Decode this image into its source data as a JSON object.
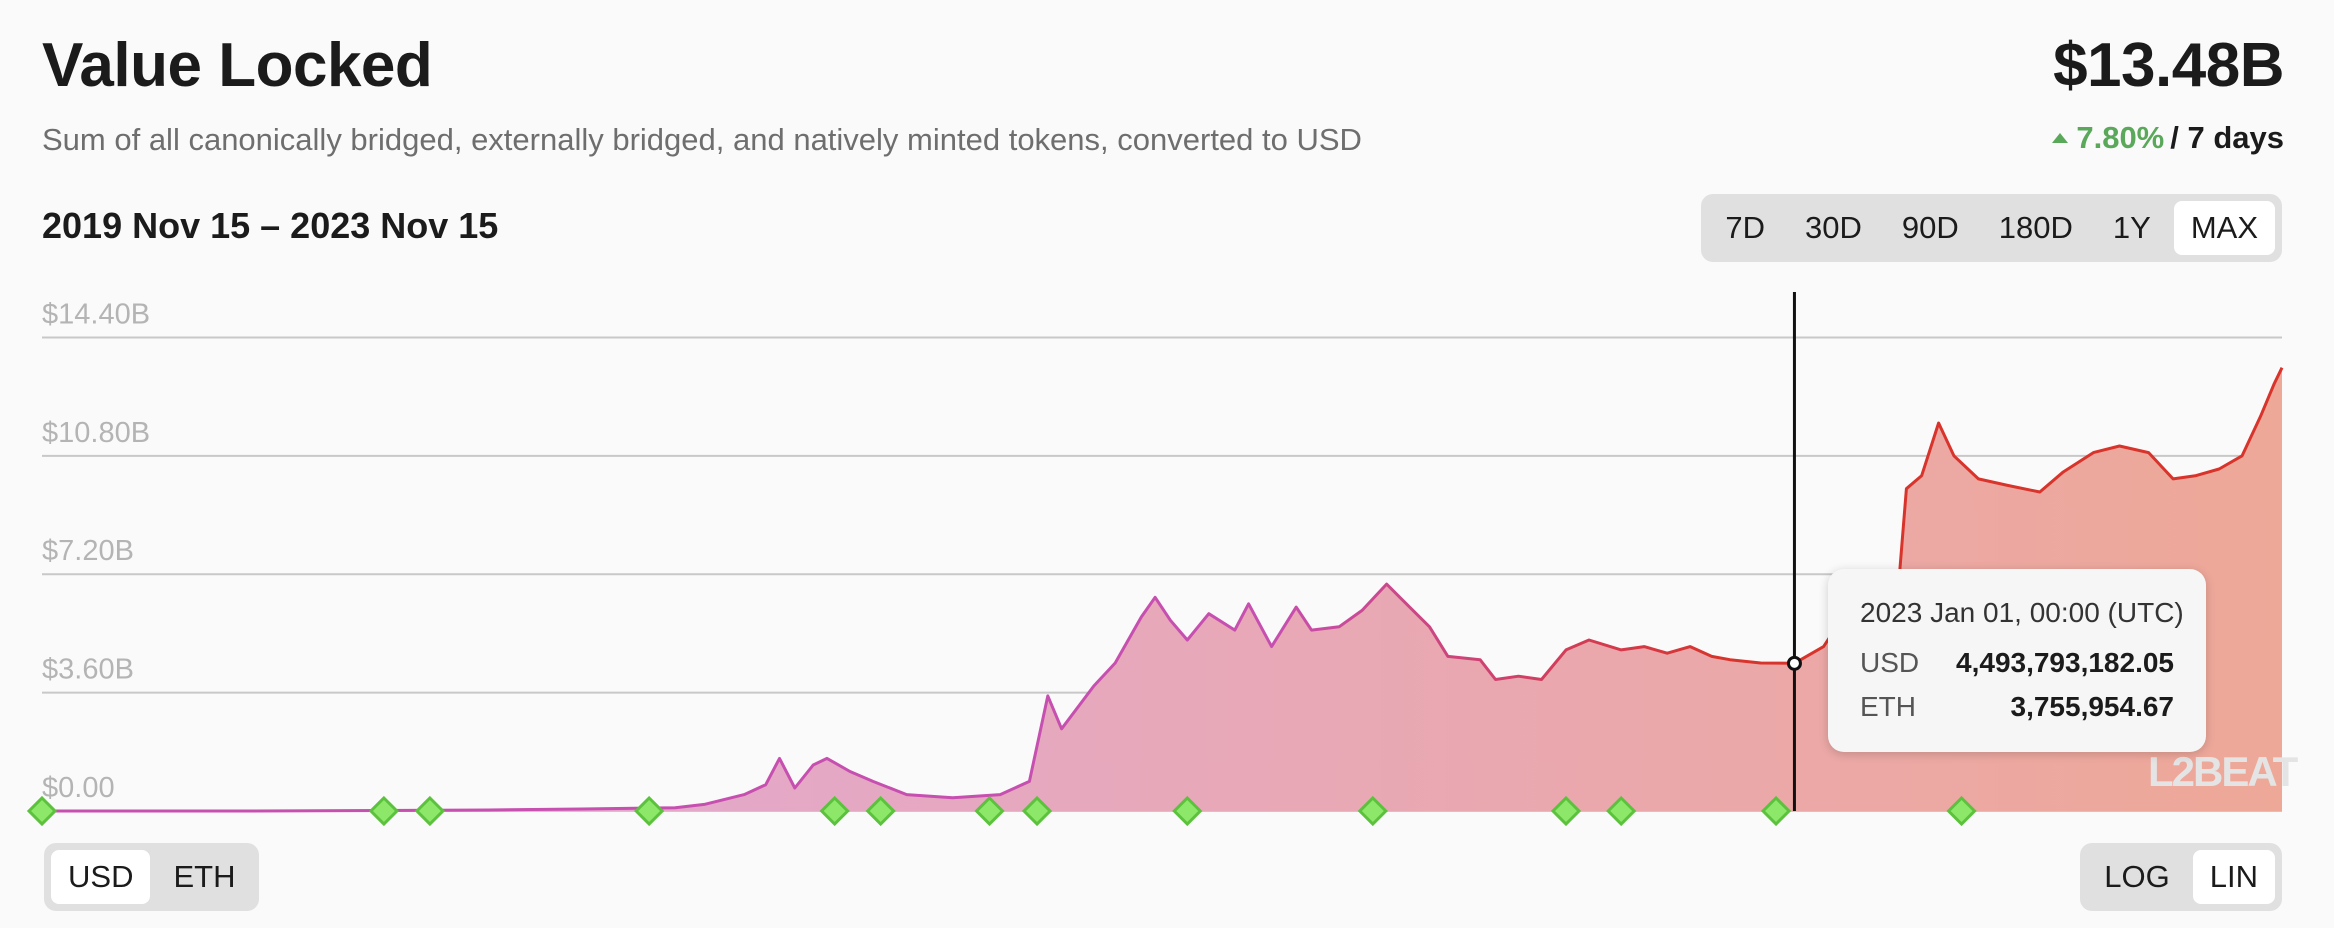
{
  "header": {
    "title": "Value Locked",
    "subtitle": "Sum of all canonically bridged, externally bridged, and natively minted tokens, converted to USD",
    "total_value": "$13.48B",
    "change_percent": "7.80%",
    "change_period": "/ 7 days",
    "change_color": "#5aa85a"
  },
  "date_range": "2019 Nov 15 – 2023 Nov 15",
  "time_range_options": [
    {
      "label": "7D",
      "active": false
    },
    {
      "label": "30D",
      "active": false
    },
    {
      "label": "90D",
      "active": false
    },
    {
      "label": "180D",
      "active": false
    },
    {
      "label": "1Y",
      "active": false
    },
    {
      "label": "MAX",
      "active": true
    }
  ],
  "unit_options": [
    {
      "label": "USD",
      "active": true
    },
    {
      "label": "ETH",
      "active": false
    }
  ],
  "scale_options": [
    {
      "label": "LOG",
      "active": false
    },
    {
      "label": "LIN",
      "active": true
    }
  ],
  "tooltip": {
    "date": "2023 Jan 01, 00:00 (UTC)",
    "usd_label": "USD",
    "usd_value": "4,493,793,182.05",
    "eth_label": "ETH",
    "eth_value": "3,755,954.67"
  },
  "watermark": "L2BEAT",
  "colors": {
    "line_start": "#c64fb0",
    "line_end": "#d8342b",
    "fill_start": "#e0a8dc",
    "fill_end": "#eea898",
    "milestone": "#8de86a",
    "milestone_border": "#5cc23e"
  },
  "chart_data": {
    "type": "area",
    "title": "",
    "xlabel": "",
    "ylabel": "",
    "x_start": "2019-11-15",
    "x_end": "2023-11-15",
    "ylim": [
      0,
      15.6
    ],
    "y_unit": "USD billions",
    "y_ticks": [
      "$0.00",
      "$3.60B",
      "$7.20B",
      "$10.80B",
      "$14.40B"
    ],
    "y_tick_values": [
      0,
      3.6,
      7.2,
      10.8,
      14.4
    ],
    "grid": true,
    "legend": "none",
    "series": [
      {
        "name": "",
        "points": [
          [
            "2019-11-15",
            0.0
          ],
          [
            "2020-04-01",
            0.0
          ],
          [
            "2020-09-01",
            0.03
          ],
          [
            "2020-11-01",
            0.06
          ],
          [
            "2021-01-01",
            0.1
          ],
          [
            "2021-01-20",
            0.2
          ],
          [
            "2021-02-15",
            0.5
          ],
          [
            "2021-03-01",
            0.8
          ],
          [
            "2021-03-10",
            1.6
          ],
          [
            "2021-03-20",
            0.7
          ],
          [
            "2021-04-01",
            1.4
          ],
          [
            "2021-04-10",
            1.6
          ],
          [
            "2021-04-25",
            1.2
          ],
          [
            "2021-05-10",
            0.9
          ],
          [
            "2021-06-01",
            0.5
          ],
          [
            "2021-07-01",
            0.4
          ],
          [
            "2021-08-01",
            0.5
          ],
          [
            "2021-08-20",
            0.9
          ],
          [
            "2021-09-01",
            3.5
          ],
          [
            "2021-09-10",
            2.5
          ],
          [
            "2021-10-01",
            3.8
          ],
          [
            "2021-10-15",
            4.5
          ],
          [
            "2021-11-01",
            5.9
          ],
          [
            "2021-11-10",
            6.5
          ],
          [
            "2021-11-20",
            5.8
          ],
          [
            "2021-12-01",
            5.2
          ],
          [
            "2021-12-15",
            6.0
          ],
          [
            "2022-01-01",
            5.5
          ],
          [
            "2022-01-10",
            6.3
          ],
          [
            "2022-01-25",
            5.0
          ],
          [
            "2022-02-10",
            6.2
          ],
          [
            "2022-02-20",
            5.5
          ],
          [
            "2022-03-10",
            5.6
          ],
          [
            "2022-03-25",
            6.1
          ],
          [
            "2022-04-10",
            6.9
          ],
          [
            "2022-04-25",
            6.2
          ],
          [
            "2022-05-08",
            5.6
          ],
          [
            "2022-05-20",
            4.7
          ],
          [
            "2022-06-10",
            4.6
          ],
          [
            "2022-06-20",
            4.0
          ],
          [
            "2022-07-05",
            4.1
          ],
          [
            "2022-07-20",
            4.0
          ],
          [
            "2022-08-05",
            4.9
          ],
          [
            "2022-08-20",
            5.2
          ],
          [
            "2022-09-10",
            4.9
          ],
          [
            "2022-09-25",
            5.0
          ],
          [
            "2022-10-10",
            4.8
          ],
          [
            "2022-10-25",
            5.0
          ],
          [
            "2022-11-08",
            4.7
          ],
          [
            "2022-11-20",
            4.6
          ],
          [
            "2022-12-10",
            4.5
          ],
          [
            "2023-01-01",
            4.49
          ],
          [
            "2023-01-20",
            5.0
          ],
          [
            "2023-02-10",
            6.5
          ],
          [
            "2023-02-20",
            6.8
          ],
          [
            "2023-03-10",
            6.9
          ],
          [
            "2023-03-15",
            9.8
          ],
          [
            "2023-03-25",
            10.2
          ],
          [
            "2023-04-05",
            11.8
          ],
          [
            "2023-04-15",
            10.8
          ],
          [
            "2023-05-01",
            10.1
          ],
          [
            "2023-05-20",
            9.9
          ],
          [
            "2023-06-10",
            9.7
          ],
          [
            "2023-06-25",
            10.3
          ],
          [
            "2023-07-15",
            10.9
          ],
          [
            "2023-08-01",
            11.1
          ],
          [
            "2023-08-20",
            10.9
          ],
          [
            "2023-09-05",
            10.1
          ],
          [
            "2023-09-20",
            10.2
          ],
          [
            "2023-10-05",
            10.4
          ],
          [
            "2023-10-20",
            10.8
          ],
          [
            "2023-11-01",
            12.0
          ],
          [
            "2023-11-10",
            13.0
          ],
          [
            "2023-11-15",
            13.48
          ]
        ]
      }
    ],
    "milestones": [
      "2019-11-15",
      "2020-06-25",
      "2020-07-25",
      "2020-12-15",
      "2021-04-15",
      "2021-05-15",
      "2021-07-25",
      "2021-08-25",
      "2021-12-01",
      "2022-04-01",
      "2022-08-05",
      "2022-09-10",
      "2022-12-20",
      "2023-04-20"
    ],
    "hover_point": {
      "x": "2023-01-01",
      "y": 4.49
    }
  }
}
